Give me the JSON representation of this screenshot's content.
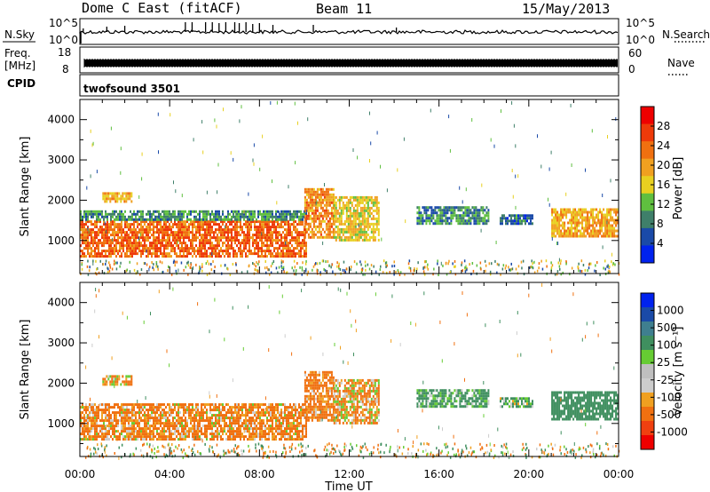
{
  "header": {
    "station": "Dome C East (fitACF)",
    "beam": "Beam 11",
    "date": "15/May/2013"
  },
  "summary_panels": {
    "nsky_label": "N.Sky",
    "nsky_top_tick": "10^5",
    "nsky_bottom_tick": "10^0",
    "nsearch_label": "N.Search",
    "nsearch_top_tick": "10^5",
    "nsearch_bottom_tick": "10^0",
    "freq_label_1": "Freq.",
    "freq_label_2": "[MHz]",
    "freq_ticks": [
      "18",
      "8"
    ],
    "nave_label": "Nave",
    "nave_ticks": [
      "60",
      "0"
    ],
    "cpid_label": "CPID",
    "cpid_value": "twofsound 3501"
  },
  "colors": {
    "power_scale": [
      "#0022ee",
      "#1a4aa8",
      "#3f7f6a",
      "#5fbf3f",
      "#e8d020",
      "#f0a020",
      "#f07010",
      "#ee3a0a",
      "#ee0000"
    ],
    "velocity_scale": [
      "#ee0000",
      "#f04010",
      "#f07010",
      "#f0a020",
      "#cccccc",
      "#bfbfbf",
      "#66cc33",
      "#3f8f5f",
      "#3f7f8f",
      "#1a4aa8",
      "#0022ee"
    ]
  },
  "chart_data": [
    {
      "type": "heatmap",
      "title": "Power",
      "ylabel": "Slant Range [km]",
      "xlabel": "",
      "ylim": [
        180,
        4500
      ],
      "y_ticks": [
        "1000",
        "2000",
        "3000",
        "4000"
      ],
      "x_ticks": [
        "00:00",
        "04:00",
        "08:00",
        "12:00",
        "16:00",
        "20:00",
        "00:00"
      ],
      "colorbar_label": "Power [dB]",
      "colorbar_ticks": [
        "4",
        "8",
        "12",
        "16",
        "20",
        "24",
        "28"
      ],
      "colorbar_range": [
        0,
        32
      ],
      "echo_regions": [
        {
          "t_start": 0.0,
          "t_end": 10.1,
          "range_low": 600,
          "range_high": 1500,
          "value": 27
        },
        {
          "t_start": 0.0,
          "t_end": 10.1,
          "range_low": 1500,
          "range_high": 1750,
          "value": 11
        },
        {
          "t_start": 1.0,
          "t_end": 2.3,
          "range_low": 1950,
          "range_high": 2200,
          "value": 21
        },
        {
          "t_start": 10.0,
          "t_end": 11.3,
          "range_low": 1100,
          "range_high": 2300,
          "value": 24
        },
        {
          "t_start": 11.3,
          "t_end": 13.3,
          "range_low": 1000,
          "range_high": 2100,
          "value": 19
        },
        {
          "t_start": 15.0,
          "t_end": 18.2,
          "range_low": 1400,
          "range_high": 1850,
          "value": 10
        },
        {
          "t_start": 18.7,
          "t_end": 20.2,
          "range_low": 1400,
          "range_high": 1650,
          "value": 8
        },
        {
          "t_start": 21.0,
          "t_end": 24.0,
          "range_low": 1100,
          "range_high": 1800,
          "value": 22
        }
      ]
    },
    {
      "type": "heatmap",
      "title": "Velocity",
      "ylabel": "Slant Range [km]",
      "xlabel": "Time UT",
      "ylim": [
        180,
        4500
      ],
      "y_ticks": [
        "1000",
        "2000",
        "3000",
        "4000"
      ],
      "x_ticks": [
        "00:00",
        "04:00",
        "08:00",
        "12:00",
        "16:00",
        "20:00",
        "00:00"
      ],
      "colorbar_label": "Velocity [m s⁻¹]",
      "colorbar_ticks": [
        "1000",
        "500",
        "100",
        "25",
        "-25",
        "-100",
        "-500",
        "-1000"
      ],
      "echo_regions": [
        {
          "t_start": 0.0,
          "t_end": 10.1,
          "range_low": 600,
          "range_high": 1500,
          "value": -150
        },
        {
          "t_start": 1.0,
          "t_end": 2.3,
          "range_low": 1950,
          "range_high": 2200,
          "value": -120
        },
        {
          "t_start": 10.0,
          "t_end": 11.3,
          "range_low": 1100,
          "range_high": 2300,
          "value": -200
        },
        {
          "t_start": 11.3,
          "t_end": 13.3,
          "range_low": 1000,
          "range_high": 2100,
          "value": -100
        },
        {
          "t_start": 15.0,
          "t_end": 18.2,
          "range_low": 1400,
          "range_high": 1850,
          "value": 200
        },
        {
          "t_start": 18.7,
          "t_end": 20.2,
          "range_low": 1400,
          "range_high": 1650,
          "value": 150
        },
        {
          "t_start": 21.0,
          "t_end": 24.0,
          "range_low": 1100,
          "range_high": 1800,
          "value": 300
        }
      ]
    }
  ]
}
